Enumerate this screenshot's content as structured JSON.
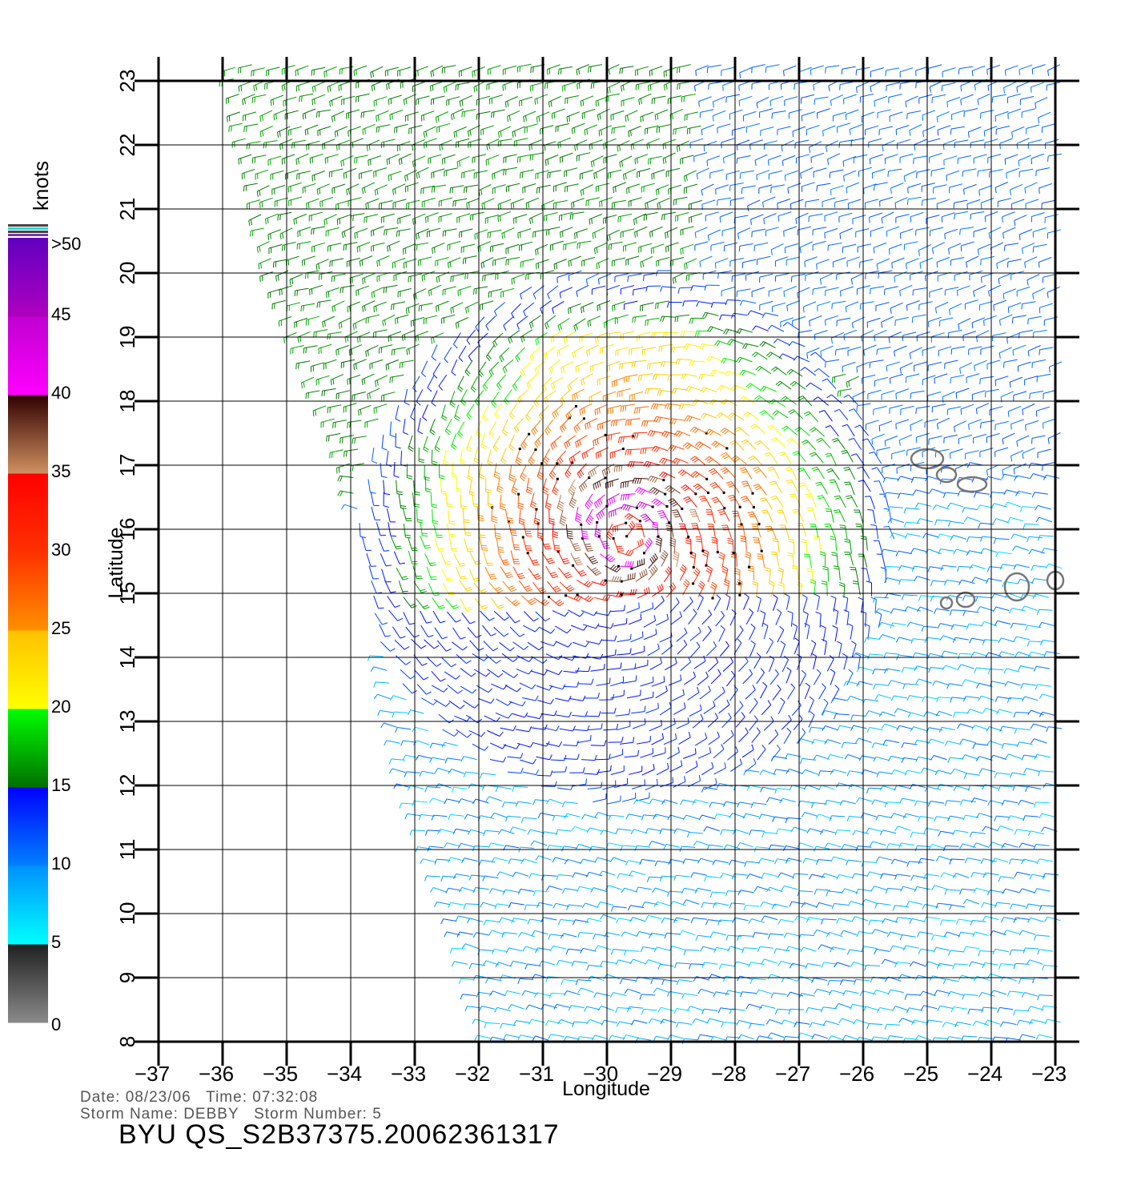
{
  "footer": {
    "date_label": "Date:",
    "date": "08/23/06",
    "time_label": "Time:",
    "time": "07:32:08",
    "storm_name_label": "Storm Name:",
    "storm_name": "DEBBY",
    "storm_number_label": "Storm Number:",
    "storm_number": "5",
    "product": "BYU QS_S2B37375.20062361317"
  },
  "colorbar": {
    "unit": "knots",
    "tick_labels": [
      "0",
      "5",
      "10",
      "15",
      "20",
      "25",
      "30",
      "35",
      "40",
      "45",
      ">50"
    ],
    "bands": [
      {
        "from": 0,
        "to": 5,
        "colors": [
          "#8a8a8a",
          "#202020"
        ]
      },
      {
        "from": 5,
        "to": 10,
        "colors": [
          "#00ffff",
          "#0090ff"
        ]
      },
      {
        "from": 10,
        "to": 15,
        "colors": [
          "#0080ff",
          "#0000ff"
        ]
      },
      {
        "from": 15,
        "to": 20,
        "colors": [
          "#007000",
          "#00ff00"
        ]
      },
      {
        "from": 20,
        "to": 25,
        "colors": [
          "#ffff00",
          "#ffc000"
        ]
      },
      {
        "from": 25,
        "to": 30,
        "colors": [
          "#ff9000",
          "#ff3000"
        ]
      },
      {
        "from": 30,
        "to": 35,
        "colors": [
          "#ff3000",
          "#ff0000"
        ]
      },
      {
        "from": 35,
        "to": 40,
        "colors": [
          "#d09060",
          "#300000"
        ]
      },
      {
        "from": 40,
        "to": 45,
        "colors": [
          "#ff00ff",
          "#c000d0"
        ]
      },
      {
        "from": 45,
        "to": 50,
        "colors": [
          "#b000c0",
          "#6000c0"
        ]
      }
    ]
  },
  "chart_data": {
    "type": "scatter",
    "subtype": "wind-barb map",
    "xlabel": "Longitude",
    "ylabel": "Latitude",
    "xlim": [
      -37,
      -23
    ],
    "ylim": [
      8,
      23
    ],
    "x_ticks": [
      -37,
      -36,
      -35,
      -34,
      -33,
      -32,
      -31,
      -30,
      -29,
      -28,
      -27,
      -26,
      -25,
      -24,
      -23
    ],
    "y_ticks": [
      8,
      9,
      10,
      11,
      12,
      13,
      14,
      15,
      16,
      17,
      18,
      19,
      20,
      21,
      22,
      23
    ],
    "grid": true,
    "storm_center": {
      "lon": -29.7,
      "lat": 15.9
    },
    "swath_west_edge": [
      {
        "lat": 23,
        "lon": -35.8
      },
      {
        "lat": 20,
        "lon": -35.2
      },
      {
        "lat": 17,
        "lon": -34.0
      },
      {
        "lat": 14,
        "lon": -33.5
      },
      {
        "lat": 12,
        "lon": -33.1
      },
      {
        "lat": 10,
        "lon": -32.4
      },
      {
        "lat": 8,
        "lon": -31.8
      }
    ],
    "swath_east_edge": -22.9,
    "wind_speed_knots": {
      "north_band_lat_19_23_west": 16,
      "north_band_east": 11,
      "storm_max": 47,
      "storm_core": 32,
      "south_region": 9
    },
    "islands": [
      {
        "lon": -25.0,
        "lat": 17.1
      },
      {
        "lon": -24.7,
        "lat": 16.85
      },
      {
        "lon": -24.3,
        "lat": 16.7
      },
      {
        "lon": -23.6,
        "lat": 15.1
      },
      {
        "lon": -23.0,
        "lat": 15.2
      },
      {
        "lon": -24.4,
        "lat": 14.9
      },
      {
        "lon": -24.7,
        "lat": 14.85
      }
    ]
  }
}
